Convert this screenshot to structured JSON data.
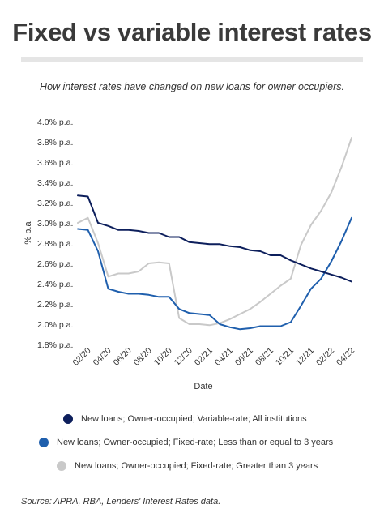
{
  "title": "Fixed vs variable interest rates",
  "subtitle": "How interest rates have changed on new loans for owner occupiers.",
  "source": "Source: APRA, RBA, Lenders' Interest Rates data.",
  "chart_data": {
    "type": "line",
    "title": "Fixed vs variable interest rates",
    "subtitle": "How interest rates have changed on new loans for owner occupiers.",
    "xlabel": "Date",
    "ylabel": "% p.a",
    "ylim": [
      1.8,
      4.0
    ],
    "yticks": [
      4.0,
      3.8,
      3.6,
      3.4,
      3.2,
      3.0,
      2.8,
      2.6,
      2.4,
      2.2,
      2.0,
      1.8
    ],
    "ytick_labels": [
      "4.0% p.a.",
      "3.8% p.a.",
      "3.6% p.a.",
      "3.4% p.a.",
      "3.2% p.a.",
      "3.0% p.a.",
      "2.8% p.a.",
      "2.6% p.a.",
      "2.4% p.a.",
      "2.2% p.a.",
      "2.0% p.a.",
      "1.8% p.a."
    ],
    "grid": false,
    "legend_position": "bottom",
    "x": [
      "2020-01",
      "2020-02",
      "2020-03",
      "2020-04",
      "2020-05",
      "2020-06",
      "2020-07",
      "2020-08",
      "2020-09",
      "2020-10",
      "2020-11",
      "2020-12",
      "2021-01",
      "2021-02",
      "2021-03",
      "2021-04",
      "2021-05",
      "2021-06",
      "2021-07",
      "2021-08",
      "2021-09",
      "2021-10",
      "2021-11",
      "2021-12",
      "2022-01",
      "2022-02",
      "2022-03",
      "2022-04"
    ],
    "xticks": [
      "02/20",
      "04/20",
      "06/20",
      "08/20",
      "10/20",
      "12/20",
      "02/21",
      "04/21",
      "06/21",
      "08/21",
      "10/21",
      "12/21",
      "02/22",
      "04/22"
    ],
    "series": [
      {
        "name": "New loans; Owner-occupied; Variable-rate; All institutions",
        "color": "#0d1f5c",
        "values": [
          3.27,
          3.26,
          3.0,
          2.97,
          2.93,
          2.93,
          2.92,
          2.9,
          2.9,
          2.86,
          2.86,
          2.81,
          2.8,
          2.79,
          2.79,
          2.77,
          2.76,
          2.73,
          2.72,
          2.68,
          2.68,
          2.63,
          2.59,
          2.55,
          2.52,
          2.49,
          2.46,
          2.42
        ]
      },
      {
        "name": "New loans; Owner-occupied; Fixed-rate; Less than or equal to 3 years",
        "color": "#1f5fad",
        "values": [
          2.94,
          2.93,
          2.72,
          2.35,
          2.32,
          2.3,
          2.3,
          2.29,
          2.27,
          2.27,
          2.15,
          2.11,
          2.1,
          2.09,
          2.0,
          1.97,
          1.95,
          1.96,
          1.98,
          1.98,
          1.98,
          2.02,
          2.18,
          2.35,
          2.45,
          2.62,
          2.82,
          3.05
        ]
      },
      {
        "name": "New loans; Owner-occupied; Fixed-rate; Greater than 3 years",
        "color": "#c9c9c9",
        "values": [
          3.0,
          3.05,
          2.8,
          2.47,
          2.5,
          2.5,
          2.52,
          2.6,
          2.61,
          2.6,
          2.06,
          2.0,
          2.0,
          1.99,
          2.01,
          2.05,
          2.1,
          2.15,
          2.22,
          2.3,
          2.38,
          2.45,
          2.78,
          2.98,
          3.12,
          3.3,
          3.55,
          3.84
        ]
      }
    ]
  }
}
